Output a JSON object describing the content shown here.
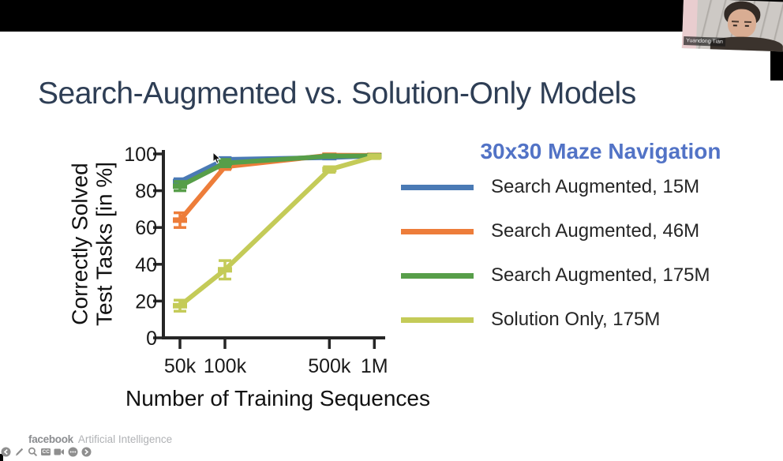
{
  "window": {
    "topbar_color": "#000000"
  },
  "video": {
    "name_tag": "Yuandong Tian"
  },
  "slide": {
    "title": "Search-Augmented vs. Solution-Only Models"
  },
  "legend": {
    "title": "30x30 Maze Navigation",
    "title_color": "#5273c6",
    "items": [
      {
        "label": "Search Augmented, 15M",
        "color": "#4a7ab5"
      },
      {
        "label": "Search Augmented, 46M",
        "color": "#ed7d3a"
      },
      {
        "label": "Search Augmented, 175M",
        "color": "#579e49"
      },
      {
        "label": "Solution Only, 175M",
        "color": "#c4cb58"
      }
    ]
  },
  "chart_data": {
    "type": "line",
    "title": "30x30 Maze Navigation",
    "xlabel": "Number of Training Sequences",
    "ylabel": "Correctly Solved Test Tasks [in %]",
    "ylabel_line1": "Correctly Solved",
    "ylabel_line2": "Test Tasks [in %]",
    "x_scale": "log",
    "x": [
      50000,
      100000,
      500000,
      1000000
    ],
    "x_tick_labels": [
      "50k",
      "100k",
      "500k",
      "1M"
    ],
    "y_ticks": [
      0,
      20,
      40,
      60,
      80,
      100
    ],
    "ylim": [
      0,
      100
    ],
    "grid": false,
    "legend_position": "right",
    "axis_color": "#262626",
    "series": [
      {
        "name": "Search Augmented, 15M",
        "color": "#4a7ab5",
        "values": [
          85,
          97,
          98,
          99
        ],
        "yerr": [
          1.5,
          1,
          0.5,
          0.5
        ]
      },
      {
        "name": "Search Augmented, 46M",
        "color": "#ed7d3a",
        "values": [
          64,
          93,
          99.3,
          99.2
        ],
        "yerr": [
          4,
          1.5,
          0.5,
          0.5
        ]
      },
      {
        "name": "Search Augmented, 175M",
        "color": "#579e49",
        "values": [
          82.5,
          95,
          98.8,
          99
        ],
        "yerr": [
          2.5,
          2,
          0.5,
          0.5
        ]
      },
      {
        "name": "Solution Only, 175M",
        "color": "#c4cb58",
        "values": [
          17.5,
          37,
          91.5,
          98.5
        ],
        "yerr": [
          3,
          5,
          1.5,
          1
        ]
      }
    ]
  },
  "footer": {
    "brand": "facebook",
    "brand_suffix": "Artificial Intelligence",
    "toolbar_icons": [
      "back",
      "draw",
      "zoom",
      "captions",
      "camera",
      "more",
      "forward"
    ],
    "cc_label": "CC"
  }
}
